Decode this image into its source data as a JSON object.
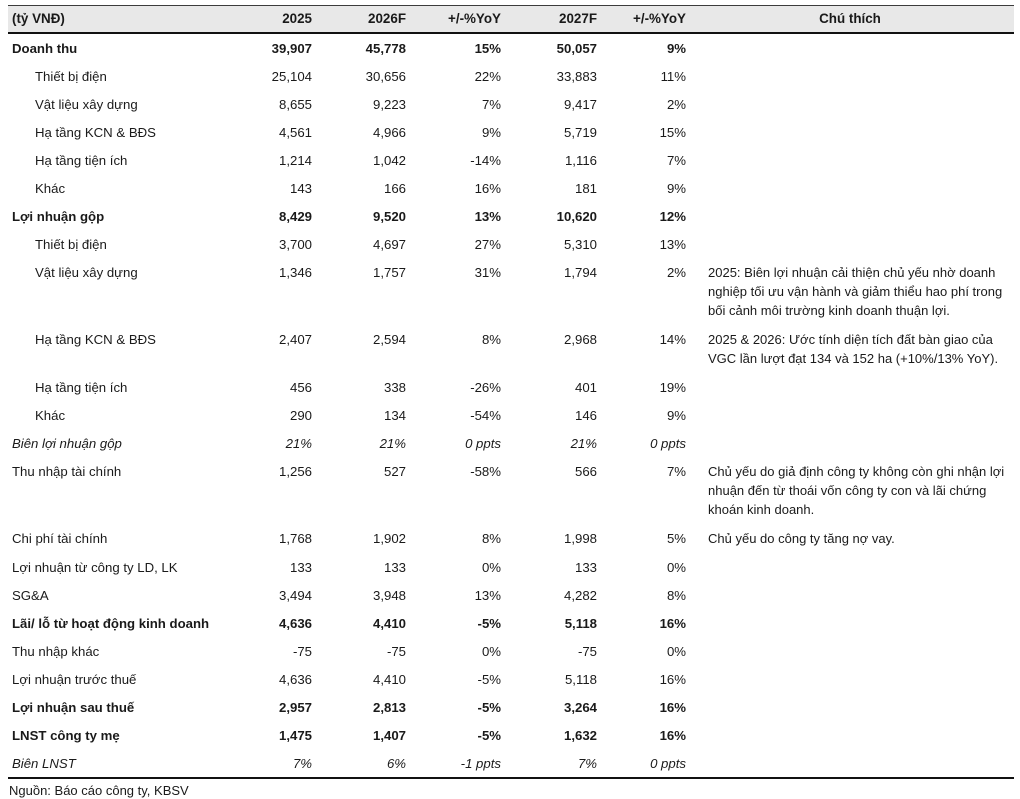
{
  "table": {
    "unit_label": "(tỷ VNĐ)",
    "columns": {
      "y2025": "2025",
      "y2026f": "2026F",
      "yoy_2026": "+/-%YoY",
      "y2027f": "2027F",
      "yoy_2027": "+/-%YoY",
      "notes": "Chú thích"
    },
    "rows": [
      {
        "label": "Doanh thu",
        "style": "bold",
        "indent": false,
        "values": [
          "39,907",
          "45,778",
          "15%",
          "50,057",
          "9%"
        ],
        "note": ""
      },
      {
        "label": "Thiết bị điện",
        "style": "normal",
        "indent": true,
        "values": [
          "25,104",
          "30,656",
          "22%",
          "33,883",
          "11%"
        ],
        "note": ""
      },
      {
        "label": "Vật liệu xây dựng",
        "style": "normal",
        "indent": true,
        "values": [
          "8,655",
          "9,223",
          "7%",
          "9,417",
          "2%"
        ],
        "note": ""
      },
      {
        "label": "Hạ tầng KCN & BĐS",
        "style": "normal",
        "indent": true,
        "values": [
          "4,561",
          "4,966",
          "9%",
          "5,719",
          "15%"
        ],
        "note": ""
      },
      {
        "label": "Hạ tầng tiện ích",
        "style": "normal",
        "indent": true,
        "values": [
          "1,214",
          "1,042",
          "-14%",
          "1,116",
          "7%"
        ],
        "note": ""
      },
      {
        "label": "Khác",
        "style": "normal",
        "indent": true,
        "values": [
          "143",
          "166",
          "16%",
          "181",
          "9%"
        ],
        "note": ""
      },
      {
        "label": "Lợi nhuận gộp",
        "style": "bold",
        "indent": false,
        "values": [
          "8,429",
          "9,520",
          "13%",
          "10,620",
          "12%"
        ],
        "note": ""
      },
      {
        "label": "Thiết bị điện",
        "style": "normal",
        "indent": true,
        "values": [
          "3,700",
          "4,697",
          "27%",
          "5,310",
          "13%"
        ],
        "note": ""
      },
      {
        "label": "Vật liệu xây dựng",
        "style": "normal",
        "indent": true,
        "values": [
          "1,346",
          "1,757",
          "31%",
          "1,794",
          "2%"
        ],
        "note": "2025: Biên lợi nhuận cải thiện chủ yếu nhờ doanh nghiệp tối ưu vận hành và giảm thiểu hao phí trong bối cảnh môi trường kinh doanh thuận lợi."
      },
      {
        "label": "Hạ tầng KCN & BĐS",
        "style": "normal",
        "indent": true,
        "values": [
          "2,407",
          "2,594",
          "8%",
          "2,968",
          "14%"
        ],
        "note": "2025 & 2026: Ước tính diện tích đất bàn giao của VGC lần lượt đạt 134 và 152 ha (+10%/13% YoY)."
      },
      {
        "label": "Hạ tầng tiện ích",
        "style": "normal",
        "indent": true,
        "values": [
          "456",
          "338",
          "-26%",
          "401",
          "19%"
        ],
        "note": ""
      },
      {
        "label": "Khác",
        "style": "normal",
        "indent": true,
        "values": [
          "290",
          "134",
          "-54%",
          "146",
          "9%"
        ],
        "note": ""
      },
      {
        "label": "Biên lợi nhuận gộp",
        "style": "italic",
        "indent": false,
        "values": [
          "21%",
          "21%",
          "0 ppts",
          "21%",
          "0 ppts"
        ],
        "note": ""
      },
      {
        "label": "Thu nhập tài chính",
        "style": "normal",
        "indent": false,
        "values": [
          "1,256",
          "527",
          "-58%",
          "566",
          "7%"
        ],
        "note": "Chủ yếu do giả định công ty không còn ghi nhận lợi nhuận đến từ thoái vốn công ty con và lãi chứng khoán kinh doanh."
      },
      {
        "label": "Chi phí tài chính",
        "style": "normal",
        "indent": false,
        "values": [
          "1,768",
          "1,902",
          "8%",
          "1,998",
          "5%"
        ],
        "note": "Chủ yếu do công ty tăng nợ vay."
      },
      {
        "label": "Lợi nhuận từ công ty LD, LK",
        "style": "normal",
        "indent": false,
        "values": [
          "133",
          "133",
          "0%",
          "133",
          "0%"
        ],
        "note": ""
      },
      {
        "label": "SG&A",
        "style": "normal",
        "indent": false,
        "values": [
          "3,494",
          "3,948",
          "13%",
          "4,282",
          "8%"
        ],
        "note": ""
      },
      {
        "label": "Lãi/ lỗ từ hoạt động kinh doanh",
        "style": "bold",
        "indent": false,
        "values": [
          "4,636",
          "4,410",
          "-5%",
          "5,118",
          "16%"
        ],
        "note": ""
      },
      {
        "label": "Thu nhập khác",
        "style": "normal",
        "indent": false,
        "values": [
          "-75",
          "-75",
          "0%",
          "-75",
          "0%"
        ],
        "note": ""
      },
      {
        "label": "Lợi nhuận trước thuế",
        "style": "normal",
        "indent": false,
        "values": [
          "4,636",
          "4,410",
          "-5%",
          "5,118",
          "16%"
        ],
        "note": ""
      },
      {
        "label": "Lợi nhuận sau thuế",
        "style": "bold",
        "indent": false,
        "values": [
          "2,957",
          "2,813",
          "-5%",
          "3,264",
          "16%"
        ],
        "note": ""
      },
      {
        "label": "LNST công ty mẹ",
        "style": "bold",
        "indent": false,
        "values": [
          "1,475",
          "1,407",
          "-5%",
          "1,632",
          "16%"
        ],
        "note": ""
      },
      {
        "label": "Biên LNST",
        "style": "italic",
        "indent": false,
        "values": [
          "7%",
          "6%",
          "-1 ppts",
          "7%",
          "0 ppts"
        ],
        "note": ""
      }
    ],
    "source": "Nguồn: Báo cáo công ty, KBSV"
  },
  "colors": {
    "header_bg": "#e8e8e8",
    "text": "#1a1a1a",
    "rule": "#111111"
  }
}
